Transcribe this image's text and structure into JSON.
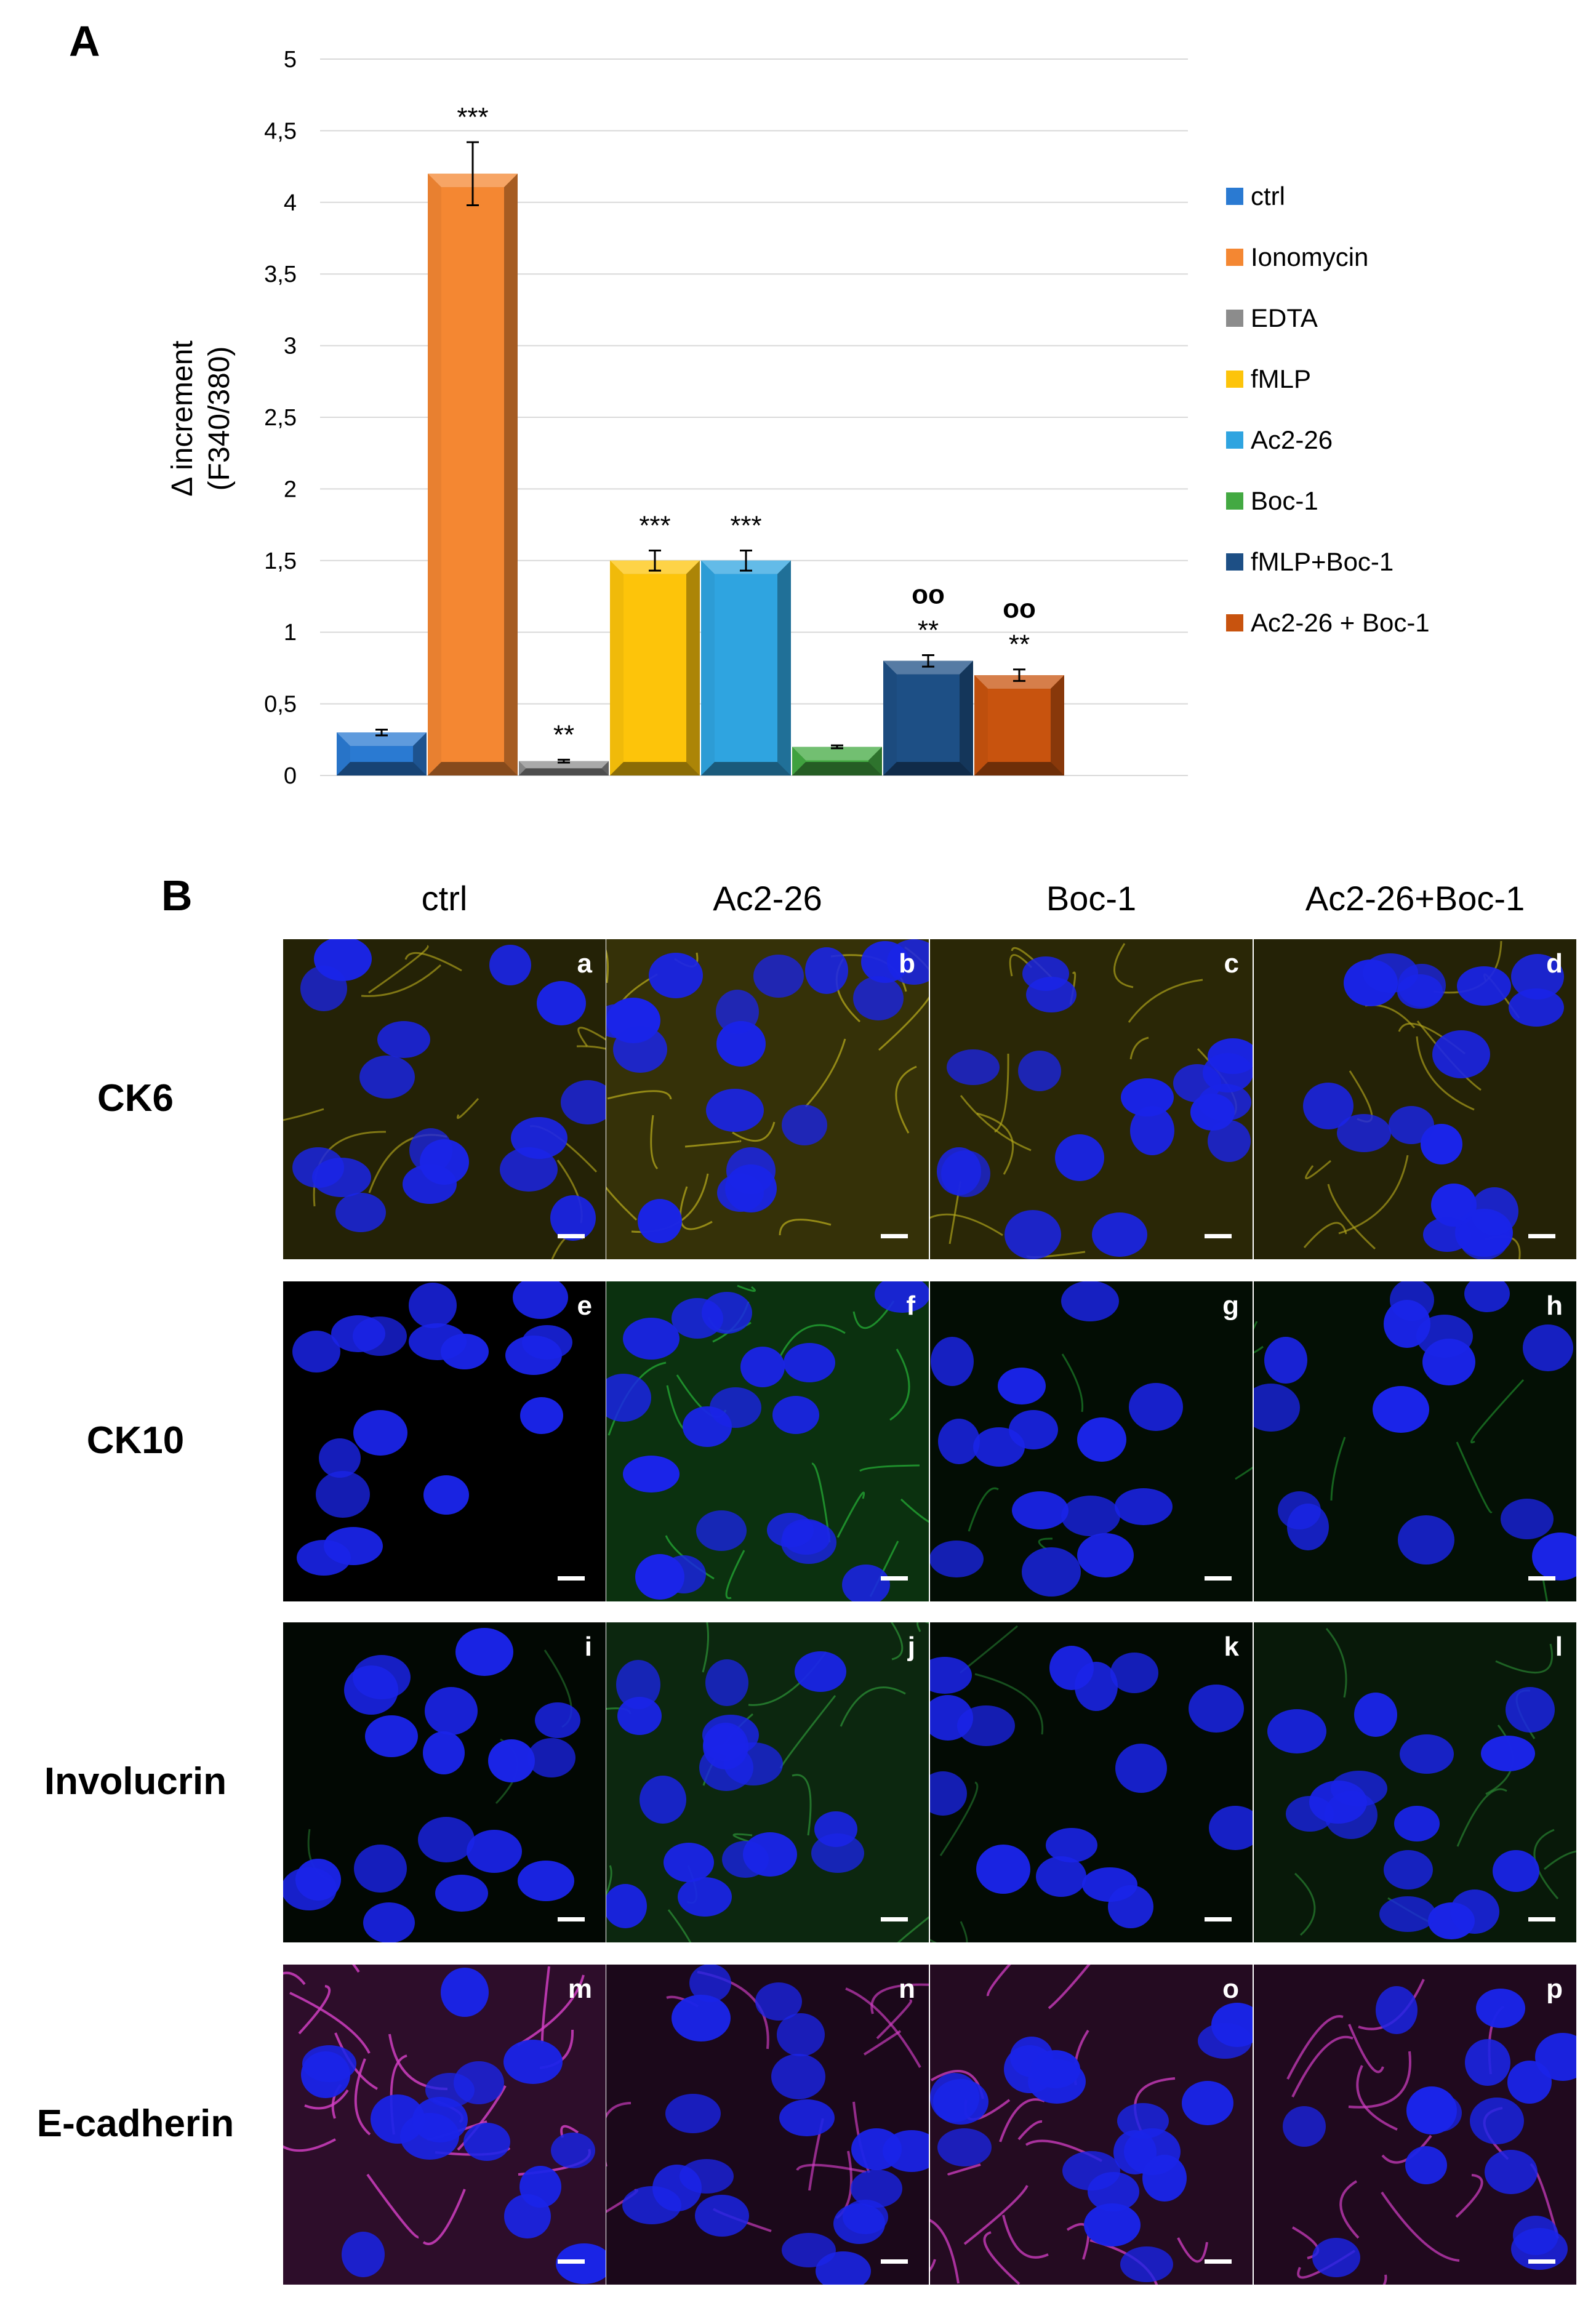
{
  "panel_a": {
    "letter": "A"
  },
  "panel_b": {
    "letter": "B"
  },
  "chart_data": {
    "type": "bar",
    "title": "",
    "xlabel": "",
    "ylabel": [
      "Δ increment",
      "(F340/380)"
    ],
    "ylim": [
      0,
      5
    ],
    "yticks": [
      "0",
      "0,5",
      "1",
      "1,5",
      "2",
      "2,5",
      "3",
      "3,5",
      "4",
      "4,5",
      "5"
    ],
    "grid": true,
    "legend_position": "right",
    "categories": [
      "ctrl",
      "Ionomycin",
      "EDTA",
      "fMLP",
      "Ac2-26",
      "Boc-1",
      "fMLP+Boc-1",
      "Ac2-26 + Boc-1"
    ],
    "values": [
      0.3,
      4.2,
      0.1,
      1.5,
      1.5,
      0.2,
      0.8,
      0.7
    ],
    "errors": [
      0.02,
      0.22,
      0.01,
      0.07,
      0.07,
      0.01,
      0.04,
      0.04
    ],
    "annotations": [
      [
        "",
        ""
      ],
      [
        "",
        "***"
      ],
      [
        "",
        "**"
      ],
      [
        "",
        "***"
      ],
      [
        "",
        "***"
      ],
      [
        "",
        ""
      ],
      [
        "oo",
        "**"
      ],
      [
        "oo",
        "**"
      ]
    ],
    "colors": [
      "#2a7ad2",
      "#f48732",
      "#8c8c8c",
      "#fdc40a",
      "#2fa4e0",
      "#43a942",
      "#1d4f85",
      "#c8530e"
    ]
  },
  "micrographs": {
    "columns": [
      "ctrl",
      "Ac2-26",
      "Boc-1",
      "Ac2-26+Boc-1"
    ],
    "rows": [
      {
        "label": "CK6",
        "stain": "#b6aa1c",
        "tiles": [
          "a",
          "b",
          "c",
          "d"
        ]
      },
      {
        "label": "CK10",
        "stain": "#27b538",
        "tiles": [
          "e",
          "f",
          "g",
          "h"
        ]
      },
      {
        "label": "Involucrin",
        "stain": "#2f9a3a",
        "tiles": [
          "i",
          "j",
          "k",
          "l"
        ]
      },
      {
        "label": "E-cadherin",
        "stain": "#d43fc6",
        "tiles": [
          "m",
          "n",
          "o",
          "p"
        ]
      }
    ],
    "nucleus_color": "#1a24e8"
  }
}
